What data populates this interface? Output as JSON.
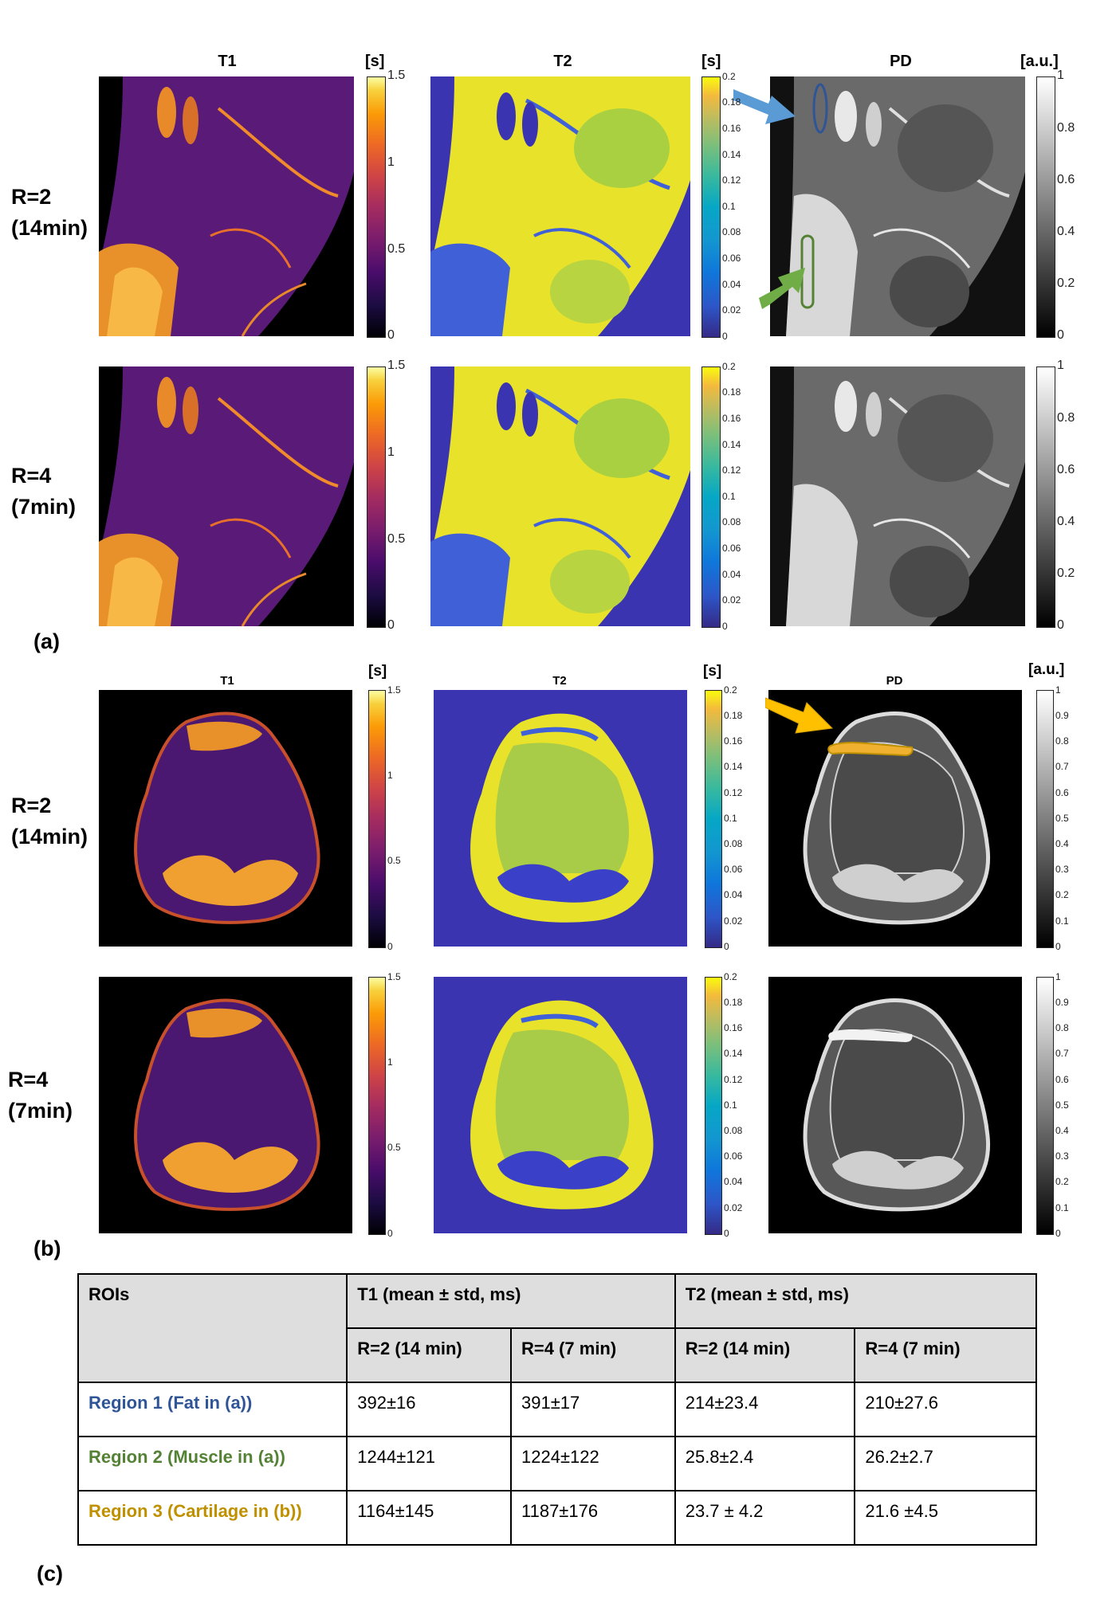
{
  "panel_a": {
    "label": "(a)",
    "columns": [
      {
        "title": "T1",
        "unit": "[s]",
        "ticks": [
          "1.5",
          "1",
          "0.5",
          "0"
        ]
      },
      {
        "title": "T2",
        "unit": "[s]",
        "ticks": [
          "0.2",
          "0.18",
          "0.16",
          "0.14",
          "0.12",
          "0.1",
          "0.08",
          "0.06",
          "0.04",
          "0.02",
          "0"
        ]
      },
      {
        "title": "PD",
        "unit": "[a.u.]",
        "ticks": [
          "1",
          "0.8",
          "0.6",
          "0.4",
          "0.2",
          "0"
        ]
      }
    ],
    "rows": [
      {
        "line1": "R=2",
        "line2": "(14min)"
      },
      {
        "line1": "R=4",
        "line2": "(7min)"
      }
    ]
  },
  "panel_b": {
    "label": "(b)",
    "columns": [
      {
        "title": "T1",
        "unit": "[s]",
        "ticks": [
          "1.5",
          "1",
          "0.5",
          "0"
        ]
      },
      {
        "title": "T2",
        "unit": "[s]",
        "ticks": [
          "0.2",
          "0.18",
          "0.16",
          "0.14",
          "0.12",
          "0.1",
          "0.08",
          "0.06",
          "0.04",
          "0.02",
          "0"
        ]
      },
      {
        "title": "PD",
        "unit": "[a.u.]",
        "ticks": [
          "1",
          "0.9",
          "0.8",
          "0.7",
          "0.6",
          "0.5",
          "0.4",
          "0.3",
          "0.2",
          "0.1",
          "0"
        ]
      }
    ],
    "rows": [
      {
        "line1": "R=2",
        "line2": "(14min)"
      },
      {
        "line1": "R=4",
        "line2": "(7min)"
      }
    ]
  },
  "panel_c": {
    "label": "(c)",
    "header": {
      "roi": "ROIs",
      "t1": "T1 (mean ± std, ms)",
      "t2": "T2 (mean ± std, ms)",
      "sub": [
        "R=2 (14 min)",
        "R=4 (7 min)",
        "R=2 (14 min)",
        "R=4 (7 min)"
      ]
    },
    "rows": [
      {
        "region": "Region 1 (Fat in (a))",
        "color": "#2f5597",
        "values": [
          "392±16",
          "391±17",
          "214±23.4",
          "210±27.6"
        ]
      },
      {
        "region": "Region 2 (Muscle in (a))",
        "color": "#548235",
        "values": [
          "1244±121",
          "1224±122",
          "25.8±2.4",
          "26.2±2.7"
        ]
      },
      {
        "region": "Region 3 (Cartilage in (b))",
        "color": "#bf9000",
        "values": [
          "1164±145",
          "1187±176",
          "23.7 ± 4.2",
          "21.6 ±4.5"
        ]
      }
    ]
  },
  "colors": {
    "fat_roi": "#2f5597",
    "muscle_roi": "#548235",
    "cartilage_roi": "#bf9000",
    "arrow_blue": "#5b9bd5",
    "arrow_green": "#70ad47",
    "arrow_orange": "#ffc000"
  }
}
